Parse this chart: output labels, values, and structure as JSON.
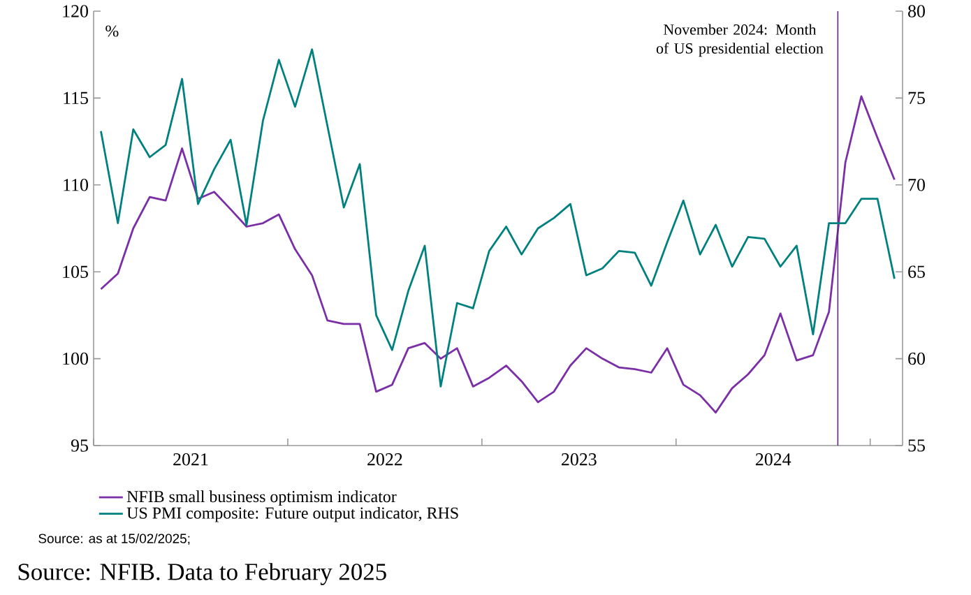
{
  "chart_data": {
    "type": "line",
    "x": [
      "2021-01-15",
      "2021-02-15",
      "2021-03-15",
      "2021-04-15",
      "2021-05-15",
      "2021-06-15",
      "2021-07-15",
      "2021-08-15",
      "2021-09-15",
      "2021-10-15",
      "2021-11-15",
      "2021-12-15",
      "2022-01-15",
      "2022-02-15",
      "2022-03-15",
      "2022-04-15",
      "2022-05-15",
      "2022-06-15",
      "2022-07-15",
      "2022-08-15",
      "2022-09-15",
      "2022-10-15",
      "2022-11-15",
      "2022-12-15",
      "2023-01-15",
      "2023-02-15",
      "2023-03-15",
      "2023-04-15",
      "2023-05-15",
      "2023-06-15",
      "2023-07-15",
      "2023-08-15",
      "2023-09-15",
      "2023-10-15",
      "2023-11-15",
      "2023-12-15",
      "2024-01-15",
      "2024-02-15",
      "2024-03-15",
      "2024-04-15",
      "2024-05-15",
      "2024-06-15",
      "2024-07-15",
      "2024-08-15",
      "2024-09-15",
      "2024-10-15",
      "2024-11-15",
      "2024-12-15",
      "2025-01-15",
      "2025-02-15"
    ],
    "series": [
      {
        "name": "NFIB small business optimism indicator",
        "color": "#7b2fa6",
        "values": [
          104.0,
          104.9,
          107.5,
          109.3,
          109.1,
          112.1,
          109.2,
          109.6,
          108.6,
          107.6,
          107.8,
          108.3,
          106.3,
          104.8,
          102.2,
          102.0,
          102.0,
          98.1,
          98.5,
          100.6,
          100.9,
          100.0,
          100.6,
          98.4,
          98.9,
          99.6,
          98.7,
          97.5,
          98.1,
          99.6,
          100.6,
          100.0,
          99.5,
          99.4,
          99.2,
          100.6,
          98.5,
          97.9,
          96.9,
          98.3,
          99.1,
          100.2,
          102.6,
          99.9,
          100.2,
          102.7,
          111.3,
          115.1,
          112.7,
          110.3
        ]
      },
      {
        "name": "US PMI composite: Future output indicator, RHS",
        "color": "#00817f",
        "axis": "y2",
        "values": [
          73.1,
          67.8,
          73.2,
          71.6,
          72.3,
          76.1,
          68.9,
          70.9,
          72.6,
          67.7,
          73.7,
          77.2,
          74.5,
          77.8,
          73.4,
          68.7,
          71.2,
          62.5,
          60.5,
          63.9,
          66.5,
          58.4,
          63.2,
          62.9,
          66.2,
          67.6,
          66.0,
          67.5,
          68.1,
          68.9,
          64.8,
          65.2,
          66.2,
          66.1,
          64.2,
          66.7,
          69.1,
          66.0,
          67.7,
          65.3,
          67.0,
          66.9,
          65.3,
          66.5,
          61.4,
          67.8,
          67.8,
          69.2,
          69.2,
          64.6
        ]
      }
    ],
    "xlim": [
      "2021-01-01",
      "2025-03-01"
    ],
    "xticks": [
      {
        "value": "2021-01-01",
        "label": null
      },
      {
        "value": "2021-07-01",
        "label": "2021"
      },
      {
        "value": "2022-01-01",
        "label": null
      },
      {
        "value": "2022-07-01",
        "label": "2022"
      },
      {
        "value": "2023-01-01",
        "label": null
      },
      {
        "value": "2023-07-01",
        "label": "2023"
      },
      {
        "value": "2024-01-01",
        "label": null
      },
      {
        "value": "2024-07-01",
        "label": "2024"
      },
      {
        "value": "2025-01-01",
        "label": null
      }
    ],
    "ylim": [
      95,
      120
    ],
    "yticks": [
      95,
      100,
      105,
      110,
      115,
      120
    ],
    "y2lim": [
      55,
      80
    ],
    "y2ticks": [
      55,
      60,
      65,
      70,
      75,
      80
    ],
    "ref_lines": [
      {
        "axis": "x",
        "value": "2024-11-01",
        "label": "November 2024: Month of US presidential election",
        "color": "#5b2a7a"
      }
    ],
    "legend": "bottom",
    "annotations": [
      "%",
      "Source: as at 15/02/2025;",
      "Source: NFIB. Data to February 2025"
    ]
  }
}
